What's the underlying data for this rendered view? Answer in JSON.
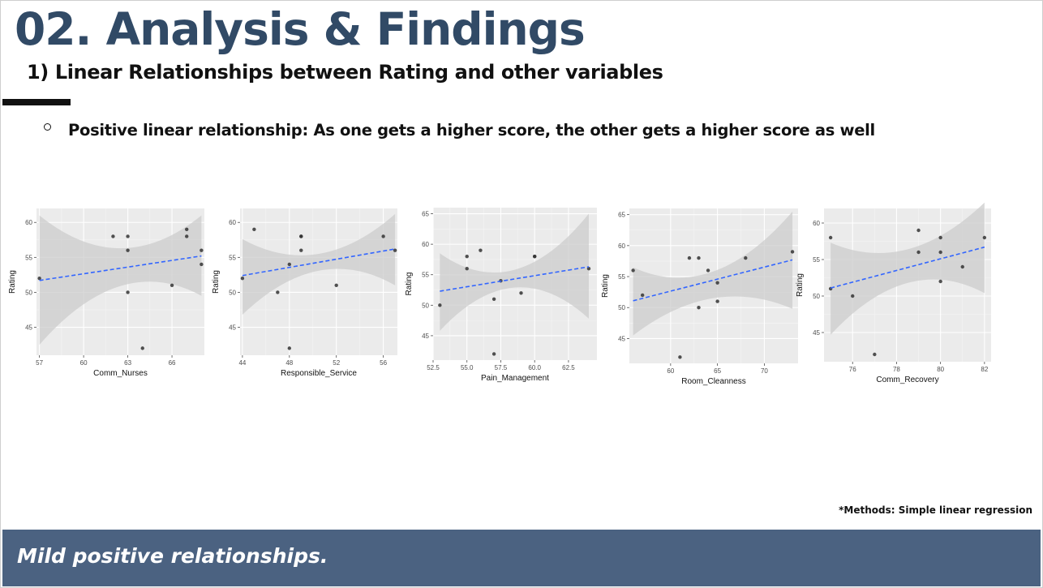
{
  "header": {
    "title": "02. Analysis & Findings",
    "subtitle": "1) Linear Relationships between Rating and other variables",
    "bullet": "Positive linear relationship: As one gets a higher score, the other gets a higher score as well"
  },
  "footnote": "*Methods: Simple linear regression",
  "banner": {
    "text": "Mild positive relationships."
  },
  "colors": {
    "title": "#314a66",
    "banner": "#4b6281",
    "panel": "#ebebeb",
    "ribbon": "#cccccc",
    "point": "#333333",
    "fit_line": "#3366ff"
  },
  "chart_data": [
    {
      "type": "scatter",
      "xlabel": "Comm_Nurses",
      "ylabel": "Rating",
      "xlim": [
        56.8,
        68.2
      ],
      "ylim": [
        41,
        62
      ],
      "xticks": [
        57,
        60,
        63,
        66
      ],
      "yticks": [
        45,
        50,
        55,
        60
      ],
      "points": [
        [
          57,
          52
        ],
        [
          62,
          58
        ],
        [
          63,
          58
        ],
        [
          63,
          56
        ],
        [
          63,
          50
        ],
        [
          64,
          42
        ],
        [
          66,
          51
        ],
        [
          67,
          59
        ],
        [
          67,
          58
        ],
        [
          68,
          56
        ],
        [
          68,
          54
        ]
      ],
      "fit": {
        "x": [
          57,
          68
        ],
        "y": [
          51.7,
          55.2
        ]
      },
      "ribbon_upper": [
        [
          57,
          61
        ],
        [
          62.5,
          56.3
        ],
        [
          68,
          61
        ]
      ],
      "ribbon_lower": [
        [
          57,
          42.5
        ],
        [
          62.5,
          50.9
        ],
        [
          68,
          49.5
        ]
      ],
      "grid": true
    },
    {
      "type": "scatter",
      "xlabel": "Responsible_Service",
      "ylabel": "Rating",
      "xlim": [
        43.8,
        57.2
      ],
      "ylim": [
        41,
        62
      ],
      "xticks": [
        44,
        48,
        52,
        56
      ],
      "yticks": [
        45,
        50,
        55,
        60
      ],
      "points": [
        [
          44,
          52
        ],
        [
          45,
          59
        ],
        [
          47,
          50
        ],
        [
          48,
          54
        ],
        [
          48,
          42
        ],
        [
          49,
          58
        ],
        [
          49,
          58
        ],
        [
          49,
          56
        ],
        [
          52,
          51
        ],
        [
          56,
          58
        ],
        [
          57,
          56
        ]
      ],
      "fit": {
        "x": [
          44,
          57
        ],
        "y": [
          52.4,
          56.2
        ]
      },
      "ribbon_upper": [
        [
          44,
          57.6
        ],
        [
          50.5,
          55.5
        ],
        [
          57,
          61.2
        ]
      ],
      "ribbon_lower": [
        [
          44,
          46.8
        ],
        [
          50.5,
          53.1
        ],
        [
          57,
          51
        ]
      ],
      "grid": true
    },
    {
      "type": "scatter",
      "xlabel": "Pain_Management",
      "ylabel": "Rating",
      "xlim": [
        52.5,
        64.6
      ],
      "ylim": [
        41,
        66
      ],
      "xticks": [
        52.5,
        55.0,
        57.5,
        60.0,
        62.5
      ],
      "yticks": [
        45,
        50,
        55,
        60,
        65
      ],
      "points": [
        [
          53,
          50
        ],
        [
          55,
          58
        ],
        [
          55,
          56
        ],
        [
          56,
          59
        ],
        [
          57,
          51
        ],
        [
          57,
          42
        ],
        [
          57.5,
          54
        ],
        [
          59,
          52
        ],
        [
          60,
          58
        ],
        [
          60,
          58
        ],
        [
          64,
          56
        ]
      ],
      "fit": {
        "x": [
          53,
          64
        ],
        "y": [
          52.3,
          56.3
        ]
      },
      "ribbon_upper": [
        [
          53,
          58.5
        ],
        [
          58.5,
          55.8
        ],
        [
          64,
          65
        ]
      ],
      "ribbon_lower": [
        [
          53,
          45.8
        ],
        [
          58.5,
          52.9
        ],
        [
          64,
          47.8
        ]
      ],
      "grid": true
    },
    {
      "type": "scatter",
      "xlabel": "Room_Cleanness",
      "ylabel": "Rating",
      "xlim": [
        55.6,
        73.6
      ],
      "ylim": [
        41,
        66
      ],
      "xticks": [
        60,
        65,
        70
      ],
      "yticks": [
        45,
        50,
        55,
        60,
        65
      ],
      "points": [
        [
          56,
          56
        ],
        [
          57,
          52
        ],
        [
          61,
          42
        ],
        [
          62,
          58
        ],
        [
          63,
          58
        ],
        [
          63,
          50
        ],
        [
          64,
          56
        ],
        [
          65,
          54
        ],
        [
          65,
          51
        ],
        [
          68,
          58
        ],
        [
          73,
          59
        ]
      ],
      "fit": {
        "x": [
          56,
          73
        ],
        "y": [
          51.1,
          57.7
        ]
      },
      "ribbon_upper": [
        [
          56,
          56.5
        ],
        [
          64.5,
          55.8
        ],
        [
          73,
          65.5
        ]
      ],
      "ribbon_lower": [
        [
          56,
          45.5
        ],
        [
          64.5,
          51.5
        ],
        [
          73,
          49.8
        ]
      ],
      "grid": true
    },
    {
      "type": "scatter",
      "xlabel": "Comm_Recovery",
      "ylabel": "Rating",
      "xlim": [
        74.7,
        82.3
      ],
      "ylim": [
        41,
        62
      ],
      "xticks": [
        76,
        78,
        80,
        82
      ],
      "yticks": [
        45,
        50,
        55,
        60
      ],
      "points": [
        [
          75,
          51
        ],
        [
          75,
          58
        ],
        [
          76,
          50
        ],
        [
          77,
          42
        ],
        [
          79,
          59
        ],
        [
          79,
          56
        ],
        [
          80,
          58
        ],
        [
          80,
          56
        ],
        [
          80,
          52
        ],
        [
          81,
          54
        ],
        [
          82,
          58
        ]
      ],
      "fit": {
        "x": [
          75,
          82
        ],
        "y": [
          51.1,
          56.7
        ]
      },
      "ribbon_upper": [
        [
          75,
          57.3
        ],
        [
          78.5,
          56.4
        ],
        [
          82,
          62.8
        ]
      ],
      "ribbon_lower": [
        [
          75,
          44.7
        ],
        [
          78.5,
          51.8
        ],
        [
          82,
          50.4
        ]
      ],
      "grid": true
    }
  ]
}
